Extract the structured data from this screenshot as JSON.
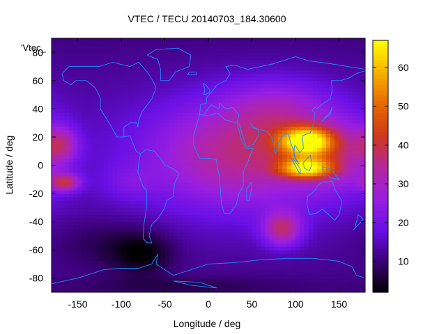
{
  "chart_data": {
    "type": "heatmap",
    "title": "VTEC / TECU 20140703_184.30600",
    "series_key": "'Vtec_",
    "xlabel": "Longitude / deg",
    "ylabel": "Latitude / deg",
    "xlim": [
      -180,
      180
    ],
    "ylim": [
      -90,
      90
    ],
    "x_ticks": [
      -150,
      -100,
      -50,
      0,
      50,
      100,
      150
    ],
    "y_ticks": [
      -80,
      -60,
      -40,
      -20,
      0,
      20,
      40,
      60,
      80
    ],
    "colorbar": {
      "min": 2,
      "max": 67,
      "ticks": [
        10,
        20,
        30,
        40,
        50,
        60
      ]
    },
    "colormap": [
      "#000000",
      "#3c0078",
      "#6a10e6",
      "#9a1fe0",
      "#b5279a",
      "#d0381a",
      "#e86a00",
      "#f7b300",
      "#ffff00"
    ],
    "coastline_color": "#1e90ff",
    "grid": false,
    "value_field": {
      "lon_step": 5,
      "lat_step": 2.5,
      "background_tecu": 14,
      "features": [
        {
          "lon": 112,
          "lat": 17,
          "sx": 30,
          "sy": 10,
          "amp": 44
        },
        {
          "lon": 112,
          "lat": -2,
          "sx": 30,
          "sy": 7,
          "amp": 38
        },
        {
          "lon": 40,
          "lat": 8,
          "sx": 110,
          "sy": 38,
          "amp": 22
        },
        {
          "lon": 80,
          "lat": 40,
          "sx": 60,
          "sy": 22,
          "amp": 10
        },
        {
          "lon": 150,
          "lat": 8,
          "sx": 45,
          "sy": 25,
          "amp": 12
        },
        {
          "lon": 85,
          "lat": -45,
          "sx": 22,
          "sy": 12,
          "amp": 22
        },
        {
          "lon": -165,
          "lat": -12,
          "sx": 18,
          "sy": 6,
          "amp": 22
        },
        {
          "lon": -170,
          "lat": 15,
          "sx": 20,
          "sy": 12,
          "amp": 16
        },
        {
          "lon": -90,
          "lat": -12,
          "sx": 30,
          "sy": 12,
          "amp": 5
        },
        {
          "lon": -75,
          "lat": -62,
          "sx": 35,
          "sy": 15,
          "amp": -9
        },
        {
          "lon": -120,
          "lat": -55,
          "sx": 60,
          "sy": 18,
          "amp": -5
        },
        {
          "lon": -30,
          "lat": -85,
          "sx": 120,
          "sy": 6,
          "amp": -4
        }
      ]
    },
    "coastlines": [
      [
        [
          -168,
          65
        ],
        [
          -160,
          70
        ],
        [
          -140,
          70
        ],
        [
          -125,
          70
        ],
        [
          -110,
          73
        ],
        [
          -90,
          70
        ],
        [
          -80,
          73
        ],
        [
          -70,
          66
        ],
        [
          -64,
          60
        ],
        [
          -60,
          55
        ],
        [
          -65,
          47
        ],
        [
          -70,
          43
        ],
        [
          -76,
          38
        ],
        [
          -80,
          32
        ],
        [
          -81,
          27
        ],
        [
          -82,
          30
        ],
        [
          -90,
          30
        ],
        [
          -97,
          27
        ],
        [
          -97,
          20
        ],
        [
          -90,
          21
        ],
        [
          -87,
          16
        ],
        [
          -83,
          10
        ],
        [
          -78,
          8
        ],
        [
          -80,
          1
        ],
        [
          -81,
          -5
        ],
        [
          -75,
          -15
        ],
        [
          -71,
          -18
        ],
        [
          -71,
          -30
        ],
        [
          -74,
          -42
        ],
        [
          -75,
          -52
        ],
        [
          -70,
          -55
        ],
        [
          -65,
          -55
        ],
        [
          -68,
          -50
        ],
        [
          -65,
          -42
        ],
        [
          -57,
          -37
        ],
        [
          -50,
          -30
        ],
        [
          -48,
          -25
        ],
        [
          -40,
          -22
        ],
        [
          -39,
          -13
        ],
        [
          -35,
          -8
        ],
        [
          -35,
          -5
        ],
        [
          -42,
          -2
        ],
        [
          -50,
          0
        ],
        [
          -55,
          5
        ],
        [
          -62,
          10
        ],
        [
          -72,
          11
        ],
        [
          -76,
          9
        ],
        [
          -78,
          8
        ]
      ],
      [
        [
          -97,
          20
        ],
        [
          -105,
          20
        ],
        [
          -112,
          28
        ],
        [
          -117,
          33
        ],
        [
          -124,
          40
        ],
        [
          -124,
          48
        ],
        [
          -130,
          55
        ],
        [
          -140,
          60
        ],
        [
          -152,
          60
        ],
        [
          -158,
          57
        ],
        [
          -166,
          60
        ],
        [
          -168,
          65
        ]
      ],
      [
        [
          -55,
          60
        ],
        [
          -45,
          60
        ],
        [
          -38,
          66
        ],
        [
          -22,
          70
        ],
        [
          -20,
          78
        ],
        [
          -35,
          83
        ],
        [
          -60,
          82
        ],
        [
          -70,
          78
        ],
        [
          -58,
          75
        ],
        [
          -55,
          68
        ],
        [
          -55,
          60
        ]
      ],
      [
        [
          -10,
          36
        ],
        [
          -17,
          21
        ],
        [
          -17,
          14
        ],
        [
          -10,
          5
        ],
        [
          0,
          5
        ],
        [
          9,
          4
        ],
        [
          10,
          0
        ],
        [
          12,
          -6
        ],
        [
          13,
          -12
        ],
        [
          15,
          -27
        ],
        [
          18,
          -34
        ],
        [
          25,
          -34
        ],
        [
          32,
          -28
        ],
        [
          35,
          -20
        ],
        [
          40,
          -15
        ],
        [
          40,
          -5
        ],
        [
          45,
          2
        ],
        [
          51,
          12
        ],
        [
          43,
          12
        ],
        [
          38,
          18
        ],
        [
          33,
          30
        ],
        [
          20,
          32
        ],
        [
          10,
          37
        ],
        [
          0,
          35
        ],
        [
          -10,
          36
        ]
      ],
      [
        [
          -10,
          36
        ],
        [
          -9,
          43
        ],
        [
          -2,
          44
        ],
        [
          -2,
          48
        ],
        [
          5,
          53
        ],
        [
          10,
          57
        ],
        [
          20,
          60
        ],
        [
          25,
          65
        ],
        [
          20,
          70
        ],
        [
          30,
          71
        ],
        [
          45,
          68
        ],
        [
          60,
          70
        ],
        [
          75,
          72
        ],
        [
          100,
          77
        ],
        [
          115,
          74
        ],
        [
          140,
          72
        ],
        [
          160,
          70
        ],
        [
          180,
          68
        ]
      ],
      [
        [
          33,
          30
        ],
        [
          35,
          36
        ],
        [
          28,
          41
        ],
        [
          20,
          40
        ],
        [
          13,
          44
        ],
        [
          12,
          40
        ],
        [
          3,
          43
        ],
        [
          -5,
          36
        ]
      ],
      [
        [
          35,
          30
        ],
        [
          43,
          14
        ],
        [
          45,
          13
        ],
        [
          52,
          15
        ],
        [
          58,
          22
        ],
        [
          57,
          25
        ],
        [
          50,
          28
        ],
        [
          48,
          30
        ],
        [
          52,
          26
        ],
        [
          56,
          26
        ],
        [
          61,
          25
        ],
        [
          67,
          24
        ],
        [
          73,
          20
        ],
        [
          77,
          8
        ],
        [
          80,
          12
        ],
        [
          80,
          16
        ],
        [
          87,
          22
        ],
        [
          92,
          22
        ],
        [
          94,
          17
        ],
        [
          98,
          10
        ],
        [
          100,
          5
        ],
        [
          104,
          1
        ],
        [
          101,
          3
        ],
        [
          98,
          8
        ],
        [
          99,
          14
        ],
        [
          101,
          13
        ],
        [
          105,
          9
        ],
        [
          109,
          12
        ],
        [
          108,
          21
        ],
        [
          117,
          23
        ],
        [
          121,
          30
        ],
        [
          122,
          37
        ],
        [
          119,
          39
        ],
        [
          122,
          41
        ],
        [
          125,
          40
        ],
        [
          130,
          43
        ],
        [
          140,
          47
        ],
        [
          142,
          53
        ],
        [
          141,
          60
        ],
        [
          152,
          60
        ],
        [
          162,
          62
        ],
        [
          170,
          65
        ],
        [
          180,
          67
        ]
      ],
      [
        [
          114,
          -22
        ],
        [
          113,
          -27
        ],
        [
          116,
          -35
        ],
        [
          124,
          -34
        ],
        [
          131,
          -31
        ],
        [
          138,
          -35
        ],
        [
          145,
          -39
        ],
        [
          150,
          -35
        ],
        [
          153,
          -27
        ],
        [
          153,
          -25
        ],
        [
          146,
          -18
        ],
        [
          142,
          -11
        ],
        [
          136,
          -12
        ],
        [
          131,
          -12
        ],
        [
          126,
          -14
        ],
        [
          122,
          -18
        ],
        [
          114,
          -22
        ]
      ],
      [
        [
          44,
          -25
        ],
        [
          47,
          -25
        ],
        [
          50,
          -15
        ],
        [
          49,
          -12
        ],
        [
          44,
          -17
        ],
        [
          44,
          -25
        ]
      ],
      [
        [
          95,
          5
        ],
        [
          104,
          -5
        ],
        [
          106,
          -6
        ],
        [
          105,
          -2
        ],
        [
          98,
          4
        ],
        [
          95,
          5
        ]
      ],
      [
        [
          109,
          2
        ],
        [
          117,
          7
        ],
        [
          119,
          1
        ],
        [
          116,
          -4
        ],
        [
          110,
          -2
        ],
        [
          109,
          2
        ]
      ],
      [
        [
          131,
          -1
        ],
        [
          141,
          -3
        ],
        [
          150,
          -10
        ],
        [
          141,
          -9
        ],
        [
          132,
          -4
        ],
        [
          131,
          -1
        ]
      ],
      [
        [
          166,
          -46
        ],
        [
          174,
          -41
        ],
        [
          178,
          -38
        ],
        [
          172,
          -35
        ],
        [
          168,
          -45
        ]
      ],
      [
        [
          130,
          31
        ],
        [
          135,
          34
        ],
        [
          140,
          36
        ],
        [
          142,
          41
        ],
        [
          140,
          38
        ],
        [
          133,
          33
        ]
      ],
      [
        [
          -5,
          50
        ],
        [
          0,
          51
        ],
        [
          2,
          53
        ],
        [
          -3,
          57
        ],
        [
          -6,
          58
        ],
        [
          -4,
          54
        ],
        [
          -5,
          50
        ]
      ],
      [
        [
          -24,
          64
        ],
        [
          -14,
          64
        ],
        [
          -14,
          66
        ],
        [
          -22,
          66
        ],
        [
          -24,
          64
        ]
      ],
      [
        [
          -180,
          -84
        ],
        [
          -150,
          -80
        ],
        [
          -120,
          -74
        ],
        [
          -100,
          -73
        ],
        [
          -80,
          -73
        ],
        [
          -65,
          -70
        ],
        [
          -58,
          -63
        ],
        [
          -60,
          -70
        ],
        [
          -40,
          -78
        ],
        [
          -20,
          -74
        ],
        [
          0,
          -70
        ],
        [
          30,
          -69
        ],
        [
          60,
          -67
        ],
        [
          90,
          -66
        ],
        [
          120,
          -66
        ],
        [
          150,
          -68
        ],
        [
          165,
          -72
        ],
        [
          170,
          -78
        ],
        [
          180,
          -80
        ]
      ],
      [
        [
          -40,
          -82
        ],
        [
          -20,
          -85
        ],
        [
          10,
          -87
        ],
        [
          -10,
          -83
        ],
        [
          -40,
          -82
        ]
      ]
    ]
  }
}
